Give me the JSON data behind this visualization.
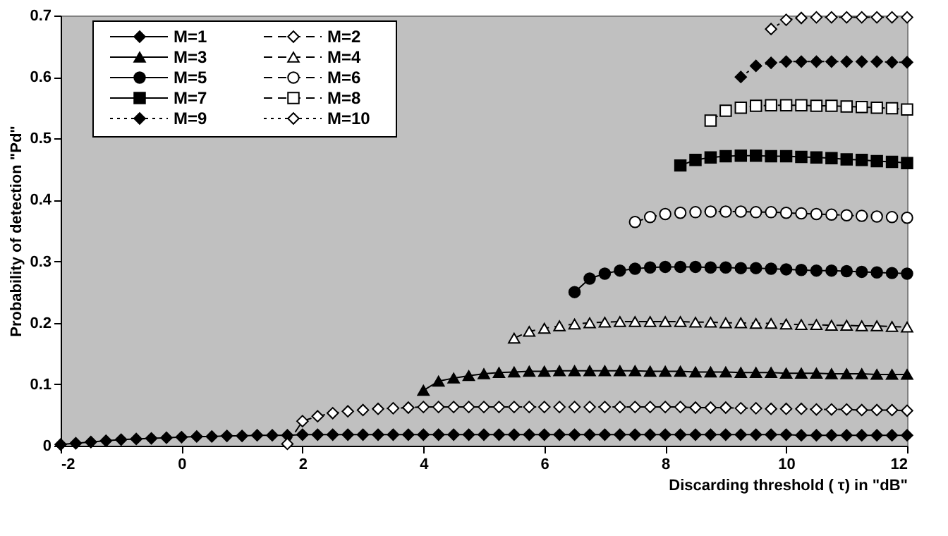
{
  "chart_data": {
    "type": "line",
    "xlabel": "Discarding threshold ( τ) in \"dB\"",
    "ylabel": "Probability of detection \"Pd\"",
    "xlim": [
      -2,
      12
    ],
    "xticks": [
      -2,
      0,
      2,
      4,
      6,
      8,
      10,
      12
    ],
    "ylim": [
      0,
      0.7
    ],
    "yticks": [
      0,
      0.1,
      0.2,
      0.3,
      0.4,
      0.5,
      0.6,
      0.7
    ],
    "grid": false,
    "legend": "top left",
    "series": [
      {
        "name": "M=1",
        "color": "#000000",
        "marker": "diamond",
        "line_style": "solid",
        "x": [
          -2,
          -1.75,
          -1.5,
          -1.25,
          -1,
          -0.75,
          -0.5,
          -0.25,
          0,
          0.25,
          0.5,
          0.75,
          1,
          1.25,
          1.5,
          1.75,
          2,
          2.25,
          2.5,
          2.75,
          3,
          3.25,
          3.5,
          3.75,
          4,
          4.25,
          4.5,
          4.75,
          5,
          5.25,
          5.5,
          5.75,
          6,
          6.25,
          6.5,
          6.75,
          7,
          7.25,
          7.5,
          7.75,
          8,
          8.25,
          8.5,
          8.75,
          9,
          9.25,
          9.5,
          9.75,
          10,
          10.25,
          10.5,
          10.75,
          11,
          11.25,
          11.5,
          11.75,
          12
        ],
        "values": [
          0.002,
          0.004,
          0.006,
          0.008,
          0.01,
          0.011,
          0.012,
          0.013,
          0.014,
          0.015,
          0.015,
          0.016,
          0.016,
          0.017,
          0.017,
          0.017,
          0.018,
          0.018,
          0.018,
          0.018,
          0.018,
          0.018,
          0.018,
          0.018,
          0.018,
          0.018,
          0.018,
          0.018,
          0.018,
          0.018,
          0.018,
          0.018,
          0.018,
          0.018,
          0.018,
          0.018,
          0.018,
          0.018,
          0.018,
          0.018,
          0.018,
          0.018,
          0.018,
          0.018,
          0.018,
          0.018,
          0.018,
          0.018,
          0.018,
          0.017,
          0.017,
          0.017,
          0.017,
          0.017,
          0.017,
          0.017,
          0.017
        ]
      },
      {
        "name": "M=2",
        "color": "#ffffff",
        "marker": "diamond",
        "line_style": "dashed",
        "x": [
          1.75,
          2,
          2.25,
          2.5,
          2.75,
          3,
          3.25,
          3.5,
          3.75,
          4,
          4.25,
          4.5,
          4.75,
          5,
          5.25,
          5.5,
          5.75,
          6,
          6.25,
          6.5,
          6.75,
          7,
          7.25,
          7.5,
          7.75,
          8,
          8.25,
          8.5,
          8.75,
          9,
          9.25,
          9.5,
          9.75,
          10,
          10.25,
          10.5,
          10.75,
          11,
          11.25,
          11.5,
          11.75,
          12
        ],
        "values": [
          0.003,
          0.04,
          0.048,
          0.053,
          0.056,
          0.058,
          0.06,
          0.061,
          0.062,
          0.063,
          0.063,
          0.063,
          0.063,
          0.063,
          0.063,
          0.063,
          0.063,
          0.063,
          0.063,
          0.063,
          0.063,
          0.063,
          0.063,
          0.063,
          0.063,
          0.063,
          0.063,
          0.062,
          0.062,
          0.062,
          0.061,
          0.061,
          0.06,
          0.06,
          0.06,
          0.059,
          0.059,
          0.059,
          0.058,
          0.058,
          0.058,
          0.057
        ]
      },
      {
        "name": "M=3",
        "color": "#000000",
        "marker": "triangle",
        "line_style": "solid",
        "x": [
          4,
          4.25,
          4.5,
          4.75,
          5,
          5.25,
          5.5,
          5.75,
          6,
          6.25,
          6.5,
          6.75,
          7,
          7.25,
          7.5,
          7.75,
          8,
          8.25,
          8.5,
          8.75,
          9,
          9.25,
          9.5,
          9.75,
          10,
          10.25,
          10.5,
          10.75,
          11,
          11.25,
          11.5,
          11.75,
          12
        ],
        "values": [
          0.09,
          0.105,
          0.11,
          0.114,
          0.117,
          0.119,
          0.12,
          0.121,
          0.121,
          0.122,
          0.122,
          0.122,
          0.122,
          0.122,
          0.122,
          0.121,
          0.121,
          0.121,
          0.12,
          0.12,
          0.12,
          0.119,
          0.119,
          0.119,
          0.118,
          0.118,
          0.118,
          0.117,
          0.117,
          0.117,
          0.116,
          0.116,
          0.116
        ]
      },
      {
        "name": "M=4",
        "color": "#ffffff",
        "marker": "triangle",
        "line_style": "dashed",
        "x": [
          5.5,
          5.75,
          6,
          6.25,
          6.5,
          6.75,
          7,
          7.25,
          7.5,
          7.75,
          8,
          8.25,
          8.5,
          8.75,
          9,
          9.25,
          9.5,
          9.75,
          10,
          10.25,
          10.5,
          10.75,
          11,
          11.25,
          11.5,
          11.75,
          12
        ],
        "values": [
          0.175,
          0.186,
          0.191,
          0.195,
          0.198,
          0.2,
          0.201,
          0.202,
          0.202,
          0.202,
          0.202,
          0.202,
          0.201,
          0.201,
          0.2,
          0.2,
          0.199,
          0.199,
          0.198,
          0.197,
          0.197,
          0.196,
          0.196,
          0.195,
          0.195,
          0.194,
          0.193
        ]
      },
      {
        "name": "M=5",
        "color": "#000000",
        "marker": "circle",
        "line_style": "solid",
        "x": [
          6.5,
          6.75,
          7,
          7.25,
          7.5,
          7.75,
          8,
          8.25,
          8.5,
          8.75,
          9,
          9.25,
          9.5,
          9.75,
          10,
          10.25,
          10.5,
          10.75,
          11,
          11.25,
          11.5,
          11.75,
          12
        ],
        "values": [
          0.25,
          0.272,
          0.28,
          0.285,
          0.288,
          0.29,
          0.291,
          0.291,
          0.291,
          0.29,
          0.29,
          0.289,
          0.289,
          0.288,
          0.287,
          0.286,
          0.285,
          0.285,
          0.284,
          0.283,
          0.282,
          0.281,
          0.28
        ]
      },
      {
        "name": "M=6",
        "color": "#ffffff",
        "marker": "circle",
        "line_style": "dashed",
        "x": [
          7.5,
          7.75,
          8,
          8.25,
          8.5,
          8.75,
          9,
          9.25,
          9.5,
          9.75,
          10,
          10.25,
          10.5,
          10.75,
          11,
          11.25,
          11.5,
          11.75,
          12
        ],
        "values": [
          0.364,
          0.372,
          0.377,
          0.379,
          0.38,
          0.381,
          0.381,
          0.381,
          0.38,
          0.38,
          0.379,
          0.378,
          0.377,
          0.376,
          0.375,
          0.374,
          0.373,
          0.372,
          0.371
        ]
      },
      {
        "name": "M=7",
        "color": "#000000",
        "marker": "square",
        "line_style": "solid",
        "x": [
          8.25,
          8.5,
          8.75,
          9,
          9.25,
          9.5,
          9.75,
          10,
          10.25,
          10.5,
          10.75,
          11,
          11.25,
          11.5,
          11.75,
          12
        ],
        "values": [
          0.456,
          0.465,
          0.469,
          0.471,
          0.472,
          0.472,
          0.471,
          0.471,
          0.47,
          0.469,
          0.468,
          0.466,
          0.465,
          0.463,
          0.462,
          0.46
        ]
      },
      {
        "name": "M=8",
        "color": "#ffffff",
        "marker": "square",
        "line_style": "dashed",
        "x": [
          8.75,
          9,
          9.25,
          9.5,
          9.75,
          10,
          10.25,
          10.5,
          10.75,
          11,
          11.25,
          11.5,
          11.75,
          12
        ],
        "values": [
          0.529,
          0.545,
          0.55,
          0.553,
          0.554,
          0.554,
          0.554,
          0.553,
          0.553,
          0.552,
          0.551,
          0.55,
          0.549,
          0.547
        ]
      },
      {
        "name": "M=9",
        "color": "#000000",
        "marker": "diamond",
        "line_style": "dotted",
        "x": [
          9.25,
          9.5,
          9.75,
          10,
          10.25,
          10.5,
          10.75,
          11,
          11.25,
          11.5,
          11.75,
          12
        ],
        "values": [
          0.6,
          0.618,
          0.623,
          0.625,
          0.625,
          0.625,
          0.625,
          0.625,
          0.625,
          0.625,
          0.624,
          0.624
        ]
      },
      {
        "name": "M=10",
        "color": "#ffffff",
        "marker": "diamond",
        "line_style": "dotted",
        "x": [
          9.75,
          10,
          10.25,
          10.5,
          10.75,
          11,
          11.25,
          11.5,
          11.75,
          12
        ],
        "values": [
          0.678,
          0.693,
          0.696,
          0.697,
          0.697,
          0.697,
          0.697,
          0.697,
          0.697,
          0.697
        ]
      }
    ]
  }
}
